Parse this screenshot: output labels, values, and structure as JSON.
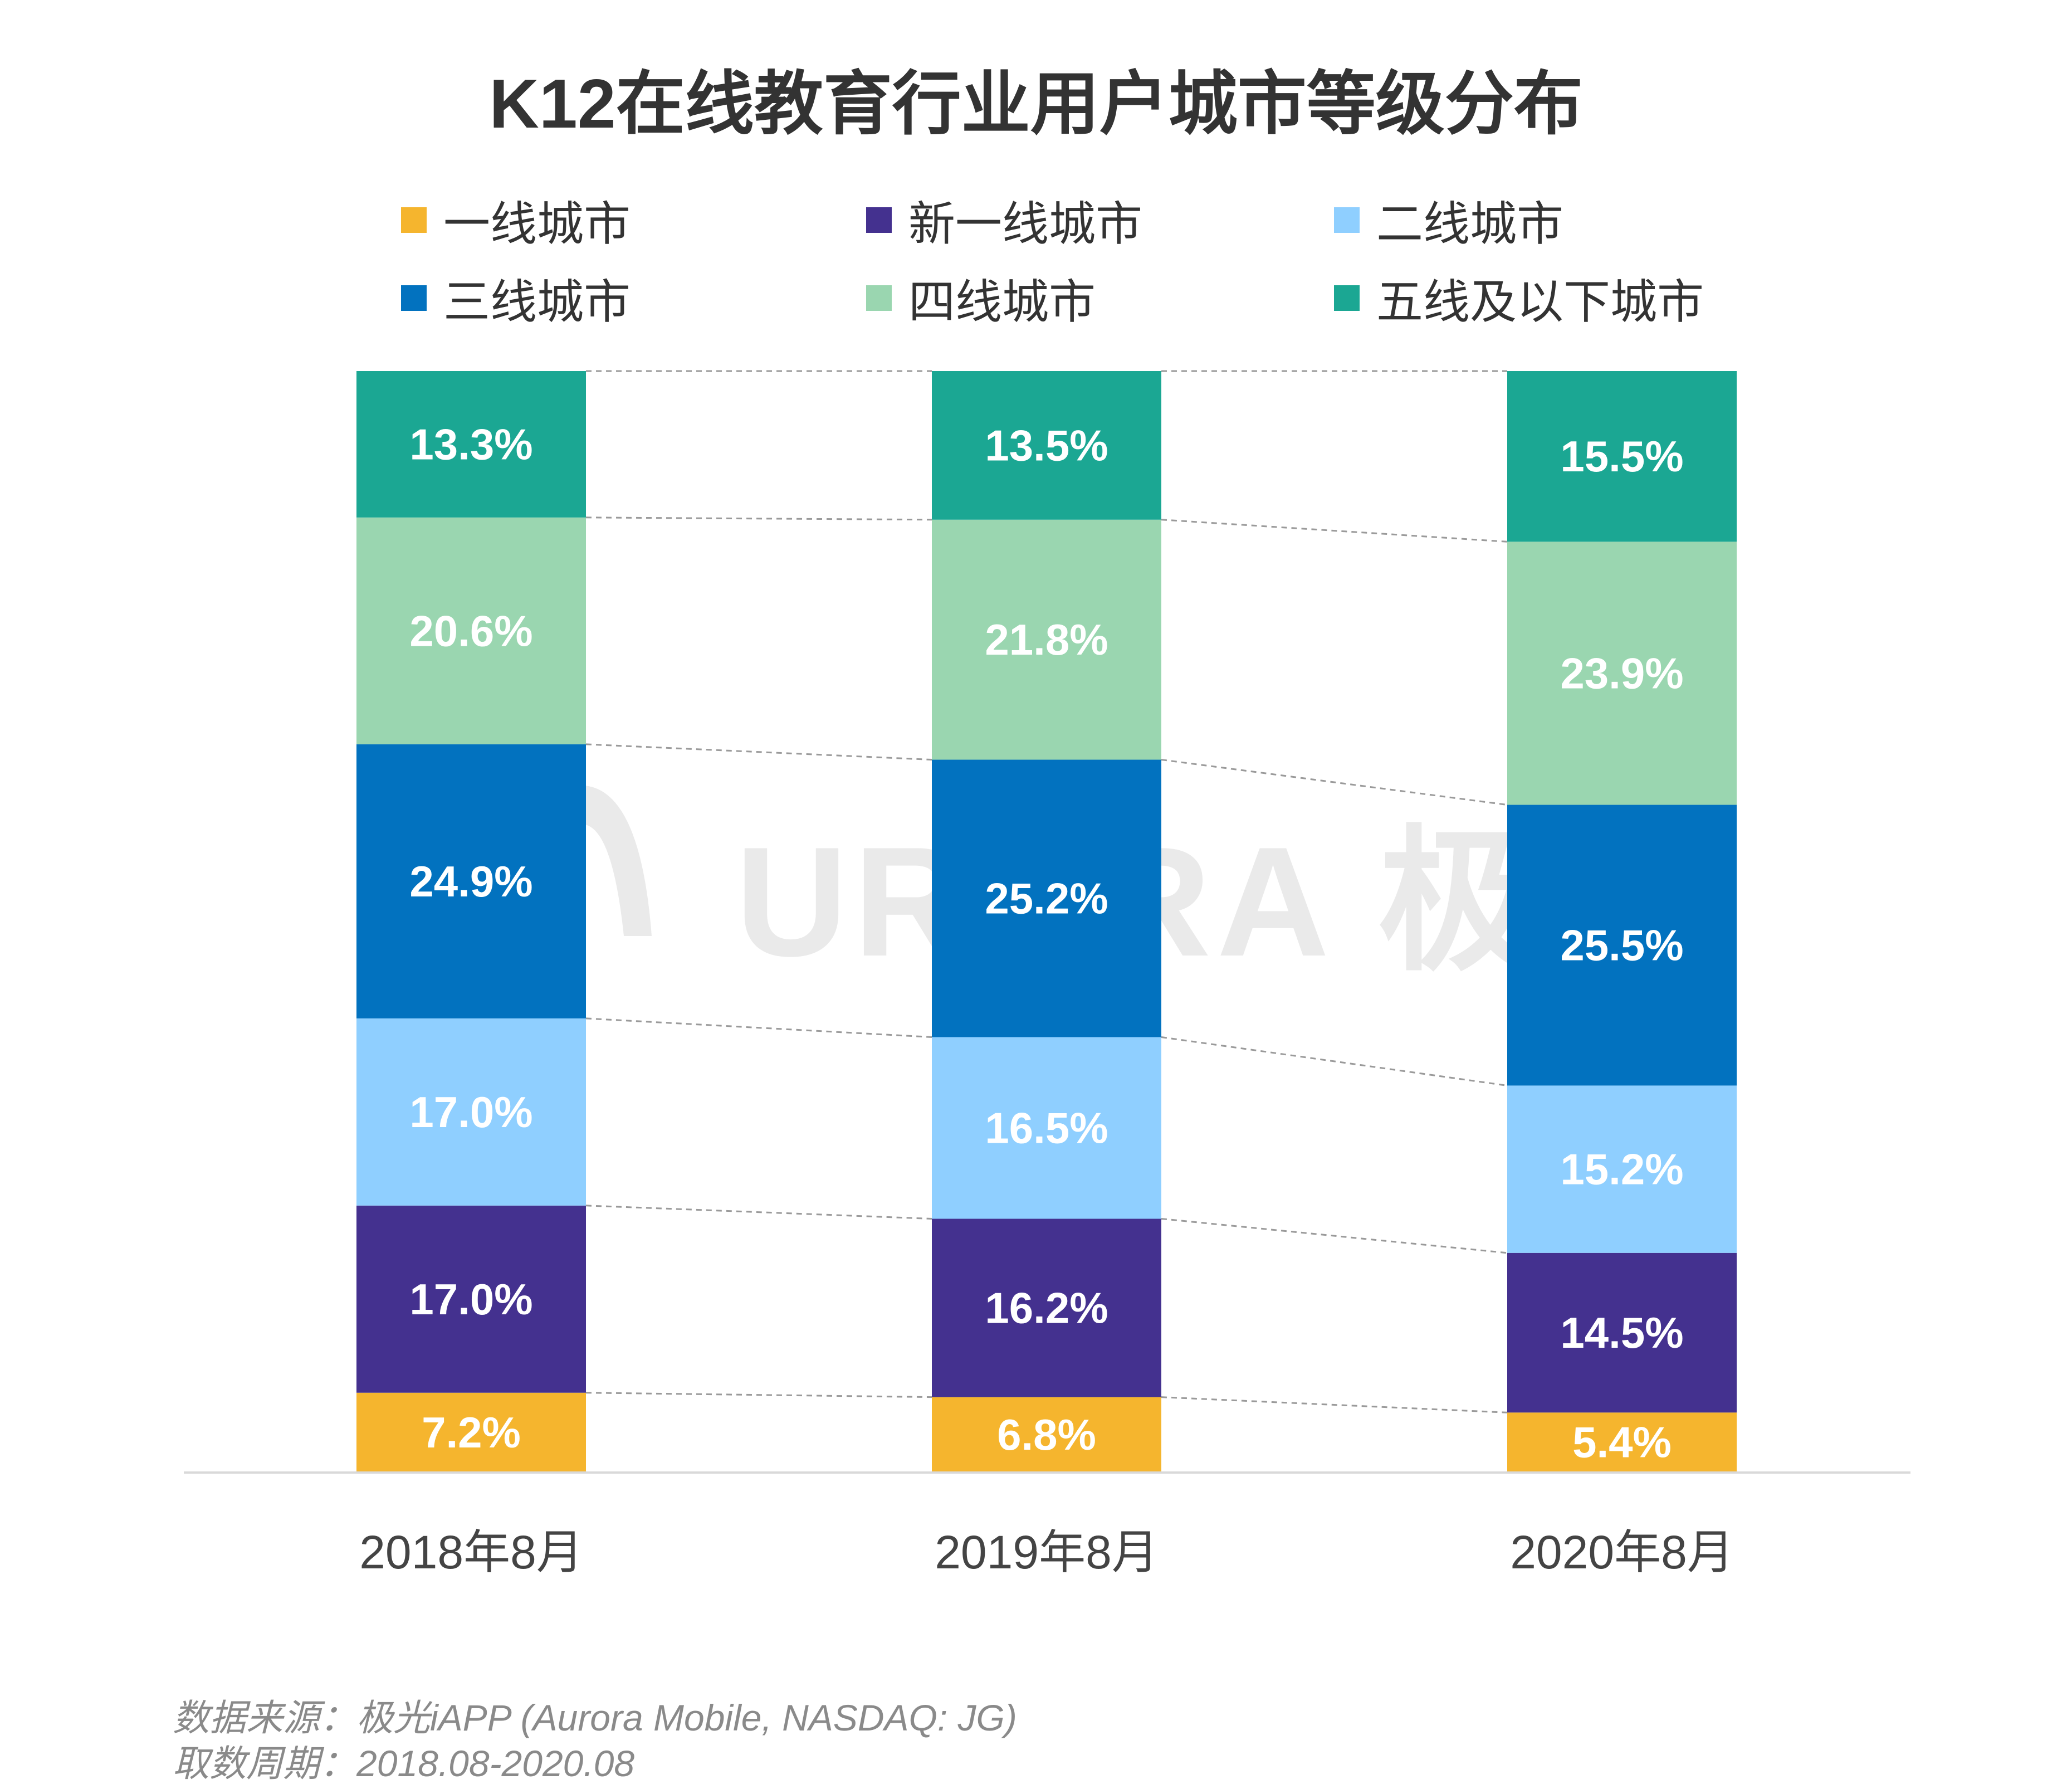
{
  "chart_data": {
    "type": "bar",
    "stacked": true,
    "title": "K12在线教育行业用户城市等级分布",
    "xlabel": "",
    "ylabel": "",
    "ylim": [
      0,
      100
    ],
    "categories": [
      "2018年8月",
      "2019年8月",
      "2020年8月"
    ],
    "series": [
      {
        "name": "一线城市",
        "color": "#F5B52E",
        "values": [
          7.2,
          6.8,
          5.4
        ],
        "labels": [
          "7.2%",
          "6.8%",
          "5.4%"
        ]
      },
      {
        "name": "新一线城市",
        "color": "#44318F",
        "values": [
          17.0,
          16.2,
          14.5
        ],
        "labels": [
          "17.0%",
          "16.2%",
          "14.5%"
        ]
      },
      {
        "name": "二线城市",
        "color": "#8FCFFF",
        "values": [
          17.0,
          16.5,
          15.2
        ],
        "labels": [
          "17.0%",
          "16.5%",
          "15.2%"
        ]
      },
      {
        "name": "三线城市",
        "color": "#0272BF",
        "values": [
          24.9,
          25.2,
          25.5
        ],
        "labels": [
          "24.9%",
          "25.2%",
          "25.5%"
        ]
      },
      {
        "name": "四线城市",
        "color": "#9AD6B0",
        "values": [
          20.6,
          21.8,
          23.9
        ],
        "labels": [
          "20.6%",
          "21.8%",
          "23.9%"
        ]
      },
      {
        "name": "五线及以下城市",
        "color": "#1BA793",
        "values": [
          13.3,
          13.5,
          15.5
        ],
        "labels": [
          "13.3%",
          "13.5%",
          "15.5%"
        ]
      }
    ],
    "legend_position": "top",
    "grid": false
  },
  "watermark": {
    "text": "URORA 极光",
    "icon": "aurora-logo-icon"
  },
  "footer": {
    "source": "数据来源：极光iAPP (Aurora Mobile, NASDAQ: JG)",
    "period": "取数周期：2018.08-2020.08"
  }
}
